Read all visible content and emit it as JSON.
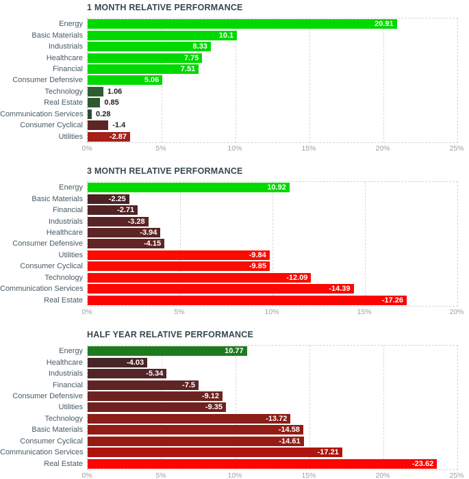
{
  "style": {
    "background": "#ffffff",
    "title_color": "#37474f",
    "category_label_color": "#455a64",
    "axis_label_color": "#9e9e9e",
    "value_label_inside_color": "#ffffff",
    "value_label_outside_color": "#212121",
    "grid_color": "#cfd3d6",
    "positive_strong_color": "#00d900",
    "positive_weak_color": "#2f5c33",
    "negative_weak_color": "#5e2526",
    "negative_strong_color": "#fb0300"
  },
  "chart_data": [
    {
      "type": "bar",
      "orientation": "horizontal",
      "title": "1 MONTH RELATIVE PERFORMANCE",
      "xlabel": "",
      "ylabel": "",
      "value_unit": "%",
      "grid": true,
      "axis": {
        "min": 0,
        "max": 25,
        "step": 5,
        "tick_labels": [
          "0%",
          "5%",
          "10%",
          "15%",
          "20%",
          "25%"
        ]
      },
      "bar_length_rule": "absolute value of performance",
      "bars": [
        {
          "category": "Energy",
          "value": 20.91,
          "label": "20.91",
          "color": "#00d900"
        },
        {
          "category": "Basic Materials",
          "value": 10.1,
          "label": "10.1",
          "color": "#00d900"
        },
        {
          "category": "Industrials",
          "value": 8.33,
          "label": "8.33",
          "color": "#00d900"
        },
        {
          "category": "Healthcare",
          "value": 7.75,
          "label": "7.75",
          "color": "#00d900"
        },
        {
          "category": "Financial",
          "value": 7.51,
          "label": "7.51",
          "color": "#00d900"
        },
        {
          "category": "Consumer Defensive",
          "value": 5.06,
          "label": "5.06",
          "color": "#00d900"
        },
        {
          "category": "Technology",
          "value": 1.06,
          "label": "1.06",
          "color": "#2f5c33"
        },
        {
          "category": "Real Estate",
          "value": 0.85,
          "label": "0.85",
          "color": "#2e5831"
        },
        {
          "category": "Communication Services",
          "value": 0.28,
          "label": "0.28",
          "color": "#2b4d2f"
        },
        {
          "category": "Consumer Cyclical",
          "value": -1.4,
          "label": "-1.4",
          "color": "#5e2526"
        },
        {
          "category": "Utilities",
          "value": -2.87,
          "label": "-2.87",
          "color": "#a52019"
        }
      ]
    },
    {
      "type": "bar",
      "orientation": "horizontal",
      "title": "3 MONTH RELATIVE PERFORMANCE",
      "xlabel": "",
      "ylabel": "",
      "value_unit": "%",
      "grid": true,
      "axis": {
        "min": 0,
        "max": 20,
        "step": 5,
        "tick_labels": [
          "0%",
          "5%",
          "10%",
          "15%",
          "20%"
        ]
      },
      "bar_length_rule": "absolute value of performance",
      "bars": [
        {
          "category": "Energy",
          "value": 10.92,
          "label": "10.92",
          "color": "#00d800"
        },
        {
          "category": "Basic Materials",
          "value": -2.25,
          "label": "-2.25",
          "color": "#4c2123"
        },
        {
          "category": "Financial",
          "value": -2.71,
          "label": "-2.71",
          "color": "#532224"
        },
        {
          "category": "Industrials",
          "value": -3.28,
          "label": "-3.28",
          "color": "#592426"
        },
        {
          "category": "Healthcare",
          "value": -3.94,
          "label": "-3.94",
          "color": "#5e2527"
        },
        {
          "category": "Consumer Defensive",
          "value": -4.15,
          "label": "-4.15",
          "color": "#622424"
        },
        {
          "category": "Utilities",
          "value": -9.84,
          "label": "-9.84",
          "color": "#fb0c00"
        },
        {
          "category": "Consumer Cyclical",
          "value": -9.85,
          "label": "-9.85",
          "color": "#fb0c00"
        },
        {
          "category": "Technology",
          "value": -12.09,
          "label": "-12.09",
          "color": "#fb0900"
        },
        {
          "category": "Communication Services",
          "value": -14.39,
          "label": "-14.39",
          "color": "#fb0600"
        },
        {
          "category": "Real Estate",
          "value": -17.26,
          "label": "-17.26",
          "color": "#fb0300"
        }
      ]
    },
    {
      "type": "bar",
      "orientation": "horizontal",
      "title": "HALF YEAR RELATIVE PERFORMANCE",
      "xlabel": "",
      "ylabel": "",
      "value_unit": "%",
      "grid": true,
      "axis": {
        "min": 0,
        "max": 25,
        "step": 5,
        "tick_labels": [
          "0%",
          "5%",
          "10%",
          "15%",
          "20%",
          "25%"
        ]
      },
      "bar_length_rule": "absolute value of performance",
      "bars": [
        {
          "category": "Energy",
          "value": 10.77,
          "label": "10.77",
          "color": "#1f7a1f"
        },
        {
          "category": "Healthcare",
          "value": -4.03,
          "label": "-4.03",
          "color": "#462527"
        },
        {
          "category": "Industrials",
          "value": -5.34,
          "label": "-5.34",
          "color": "#522628"
        },
        {
          "category": "Financial",
          "value": -7.5,
          "label": "-7.5",
          "color": "#5f2424"
        },
        {
          "category": "Consumer Defensive",
          "value": -9.12,
          "label": "-9.12",
          "color": "#6d2321"
        },
        {
          "category": "Utilities",
          "value": -9.35,
          "label": "-9.35",
          "color": "#702220"
        },
        {
          "category": "Technology",
          "value": -13.72,
          "label": "-13.72",
          "color": "#8c1d17"
        },
        {
          "category": "Basic Materials",
          "value": -14.58,
          "label": "-14.58",
          "color": "#941c15"
        },
        {
          "category": "Consumer Cyclical",
          "value": -14.61,
          "label": "-14.61",
          "color": "#951c15"
        },
        {
          "category": "Communication Services",
          "value": -17.21,
          "label": "-17.21",
          "color": "#ad150e"
        },
        {
          "category": "Real Estate",
          "value": -23.62,
          "label": "-23.62",
          "color": "#fb0500"
        }
      ]
    }
  ]
}
